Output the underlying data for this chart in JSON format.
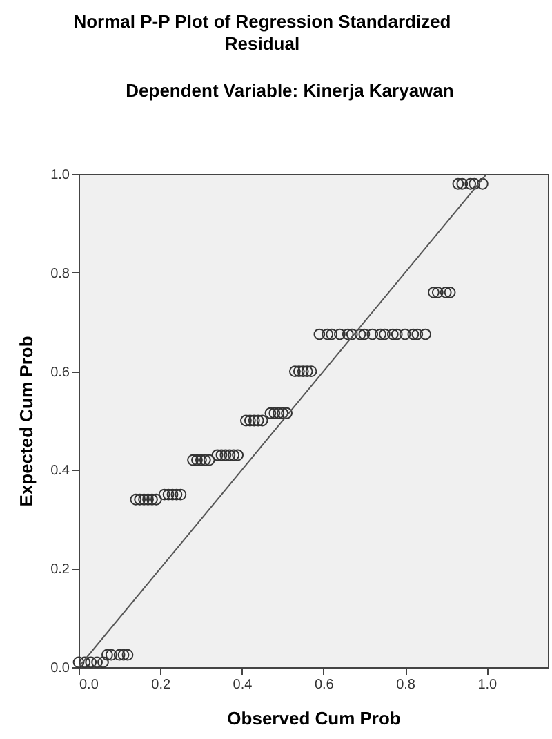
{
  "chart_data": {
    "type": "scatter",
    "title": "Normal P-P Plot of Regression Standardized Residual",
    "subtitle": "Dependent Variable: Kinerja Karyawan",
    "xlabel": "Observed Cum Prob",
    "ylabel": "Expected Cum Prob",
    "xlim": [
      0,
      1.15
    ],
    "ylim": [
      0,
      1
    ],
    "xticks": [
      {
        "value": 0,
        "label": "0.0"
      },
      0.2,
      0.4,
      0.6,
      0.8,
      {
        "value": 1,
        "label": "1.0"
      }
    ],
    "yticks": [
      {
        "value": 0,
        "label": "0.0"
      },
      0.2,
      0.4,
      0.6,
      0.8,
      {
        "value": 1,
        "label": "1.0"
      }
    ],
    "grid": false,
    "series": [
      {
        "marker": "circle",
        "color": "#333333",
        "x": [
          0,
          0.015,
          0.03,
          0.045,
          0.06,
          0.07,
          0.08,
          0.1,
          0.11,
          0.12,
          0.14,
          0.15,
          0.16,
          0.17,
          0.18,
          0.19,
          0.21,
          0.22,
          0.23,
          0.24,
          0.25,
          0.28,
          0.29,
          0.3,
          0.31,
          0.32,
          0.34,
          0.35,
          0.36,
          0.37,
          0.38,
          0.39,
          0.41,
          0.42,
          0.43,
          0.44,
          0.45,
          0.47,
          0.48,
          0.49,
          0.5,
          0.51,
          0.53,
          0.54,
          0.55,
          0.56,
          0.57,
          0.59,
          0.61,
          0.62,
          0.64,
          0.66,
          0.67,
          0.69,
          0.7,
          0.72,
          0.74,
          0.75,
          0.77,
          0.78,
          0.8,
          0.82,
          0.83,
          0.85,
          0.87,
          0.88,
          0.9,
          0.91,
          0.93,
          0.94,
          0.96,
          0.97,
          0.99
        ],
        "values": [
          0.01,
          0.01,
          0.01,
          0.01,
          0.01,
          0.025,
          0.025,
          0.025,
          0.025,
          0.025,
          0.34,
          0.34,
          0.34,
          0.34,
          0.34,
          0.34,
          0.35,
          0.35,
          0.35,
          0.35,
          0.35,
          0.42,
          0.42,
          0.42,
          0.42,
          0.42,
          0.43,
          0.43,
          0.43,
          0.43,
          0.43,
          0.43,
          0.5,
          0.5,
          0.5,
          0.5,
          0.5,
          0.515,
          0.515,
          0.515,
          0.515,
          0.515,
          0.6,
          0.6,
          0.6,
          0.6,
          0.6,
          0.675,
          0.675,
          0.675,
          0.675,
          0.675,
          0.675,
          0.675,
          0.675,
          0.675,
          0.675,
          0.675,
          0.675,
          0.675,
          0.675,
          0.675,
          0.675,
          0.675,
          0.76,
          0.76,
          0.76,
          0.76,
          0.98,
          0.98,
          0.98,
          0.98,
          0.98
        ]
      },
      {
        "type": "line",
        "color": "#555555",
        "x": [
          0,
          1
        ],
        "values": [
          0,
          1
        ]
      }
    ]
  }
}
